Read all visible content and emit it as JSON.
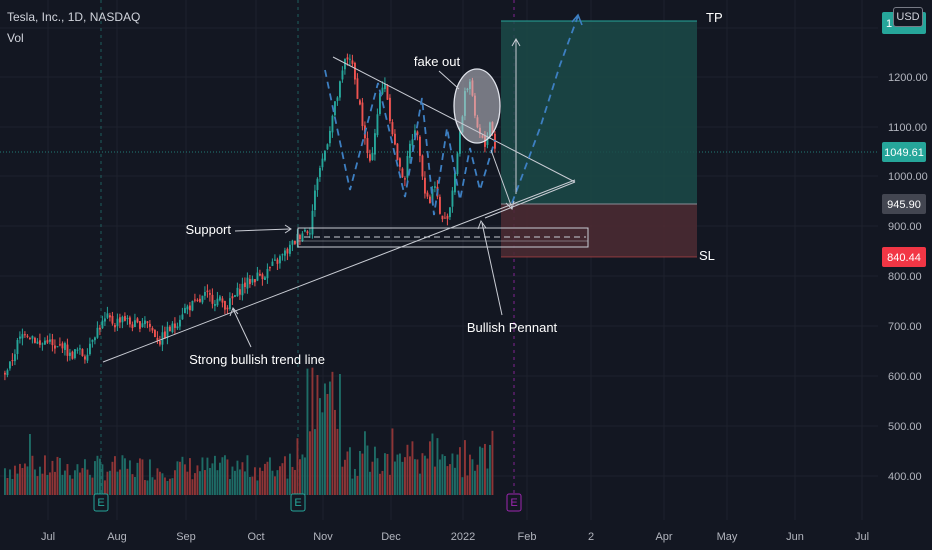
{
  "header": {
    "title": "Tesla, Inc., 1D, NASDAQ",
    "volume_label": "Vol",
    "currency": "USD"
  },
  "chart_data": {
    "type": "candlestick",
    "symbol": "Tesla, Inc.",
    "interval": "1D",
    "exchange": "NASDAQ",
    "y_ticks": [
      "1200.00",
      "1100.00",
      "1000.00",
      "900.00",
      "800.00",
      "700.00",
      "600.00",
      "500.00",
      "400.00"
    ],
    "x_ticks": [
      "Jul",
      "Aug",
      "Sep",
      "Oct",
      "Nov",
      "Dec",
      "2022",
      "Feb",
      "2",
      "Apr",
      "May",
      "Jun",
      "Jul"
    ],
    "price_path": [
      [
        0,
        605
      ],
      [
        3,
        620
      ],
      [
        6,
        665
      ],
      [
        9,
        690
      ],
      [
        12,
        680
      ],
      [
        15,
        660
      ],
      [
        18,
        675
      ],
      [
        21,
        650
      ],
      [
        24,
        665
      ],
      [
        27,
        640
      ],
      [
        30,
        650
      ],
      [
        33,
        640
      ],
      [
        36,
        680
      ],
      [
        39,
        700
      ],
      [
        42,
        715
      ],
      [
        45,
        705
      ],
      [
        48,
        720
      ],
      [
        51,
        705
      ],
      [
        54,
        700
      ],
      [
        57,
        715
      ],
      [
        60,
        690
      ],
      [
        63,
        670
      ],
      [
        66,
        690
      ],
      [
        69,
        700
      ],
      [
        72,
        730
      ],
      [
        75,
        740
      ],
      [
        78,
        745
      ],
      [
        81,
        760
      ],
      [
        84,
        755
      ],
      [
        87,
        750
      ],
      [
        90,
        740
      ],
      [
        93,
        760
      ],
      [
        96,
        780
      ],
      [
        99,
        790
      ],
      [
        102,
        800
      ],
      [
        105,
        805
      ],
      [
        108,
        820
      ],
      [
        111,
        835
      ],
      [
        114,
        850
      ],
      [
        117,
        870
      ],
      [
        120,
        890
      ],
      [
        123,
        895
      ],
      [
        126,
        1000
      ],
      [
        129,
        1050
      ],
      [
        132,
        1120
      ],
      [
        135,
        1180
      ],
      [
        137,
        1230
      ],
      [
        139,
        1240
      ],
      [
        141,
        1190
      ],
      [
        143,
        1140
      ],
      [
        145,
        1070
      ],
      [
        147,
        1020
      ],
      [
        149,
        1090
      ],
      [
        151,
        1160
      ],
      [
        153,
        1190
      ],
      [
        155,
        1120
      ],
      [
        157,
        1060
      ],
      [
        159,
        1010
      ],
      [
        161,
        1000
      ],
      [
        163,
        1060
      ],
      [
        165,
        1100
      ],
      [
        167,
        1050
      ],
      [
        169,
        970
      ],
      [
        171,
        950
      ],
      [
        173,
        990
      ],
      [
        175,
        920
      ],
      [
        177,
        910
      ],
      [
        179,
        940
      ],
      [
        181,
        1010
      ],
      [
        183,
        1080
      ],
      [
        185,
        1170
      ],
      [
        187,
        1190
      ],
      [
        189,
        1110
      ],
      [
        191,
        1080
      ],
      [
        193,
        1060
      ],
      [
        195,
        1110
      ],
      [
        197,
        1060
      ],
      [
        199,
        1050
      ],
      [
        201,
        1000
      ]
    ],
    "volume_scale": "no axis labels",
    "annotations": [
      "fake out",
      "TP",
      "SL",
      "Support",
      "Strong bullish trend line",
      "Bullish Pennant"
    ],
    "price_labels": [
      {
        "text": "1049.61",
        "bg": "#26a69a",
        "fg": "#ffffff"
      },
      {
        "text": "945.90",
        "bg": "#434651",
        "fg": "#ffffff"
      },
      {
        "text": "840.44",
        "bg": "#f23645",
        "fg": "#ffffff"
      }
    ],
    "top_axis_label": {
      "fragment": "1",
      "fragment_end": "3",
      "bg": "#26a69a"
    },
    "earnings_markers": [
      "E",
      "E",
      "E"
    ],
    "colors": {
      "up": "#26a69a",
      "down": "#ef5350",
      "vol_up": "#1e6c66",
      "vol_down": "#8e3536",
      "target_zone": "#1b4a48",
      "stop_zone": "#4a2a32",
      "projection": "#3d7fc2",
      "background": "#131722"
    }
  }
}
